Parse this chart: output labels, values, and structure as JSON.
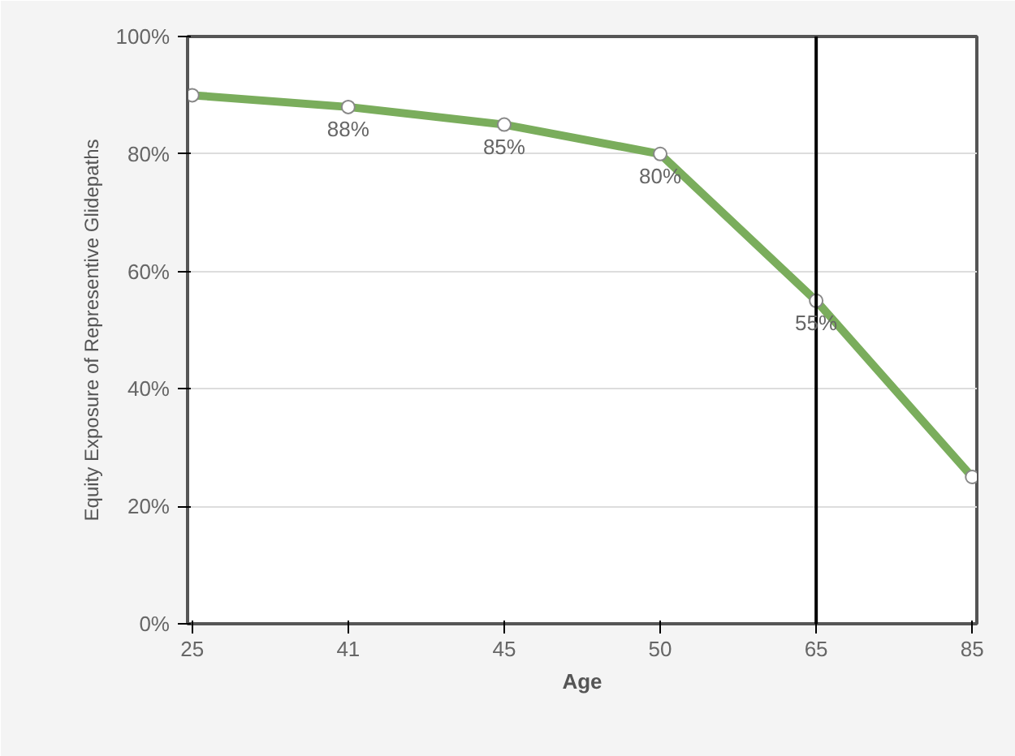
{
  "chart_data": {
    "type": "line",
    "xlabel": "Age",
    "ylabel": "Equity Exposure of Representive Glidepaths",
    "categories": [
      "25",
      "41",
      "45",
      "50",
      "65",
      "85"
    ],
    "series": [
      {
        "color": "#7aad5c",
        "values": [
          90,
          88,
          85,
          80,
          55,
          25
        ],
        "value_labels": [
          null,
          "88%",
          "85%",
          "80%",
          "55%",
          null
        ]
      }
    ],
    "ylim": [
      0,
      100
    ],
    "yticks": [
      {
        "value": 0,
        "label": "0%"
      },
      {
        "value": 20,
        "label": "20%"
      },
      {
        "value": 40,
        "label": "40%"
      },
      {
        "value": 60,
        "label": "60%"
      },
      {
        "value": 80,
        "label": "80%"
      },
      {
        "value": 100,
        "label": "100%"
      }
    ],
    "ref_lines": [
      {
        "axis": "x",
        "value": "65",
        "color": "#000000"
      }
    ],
    "grid": "y",
    "marker": "circle",
    "line_style": "solid"
  }
}
